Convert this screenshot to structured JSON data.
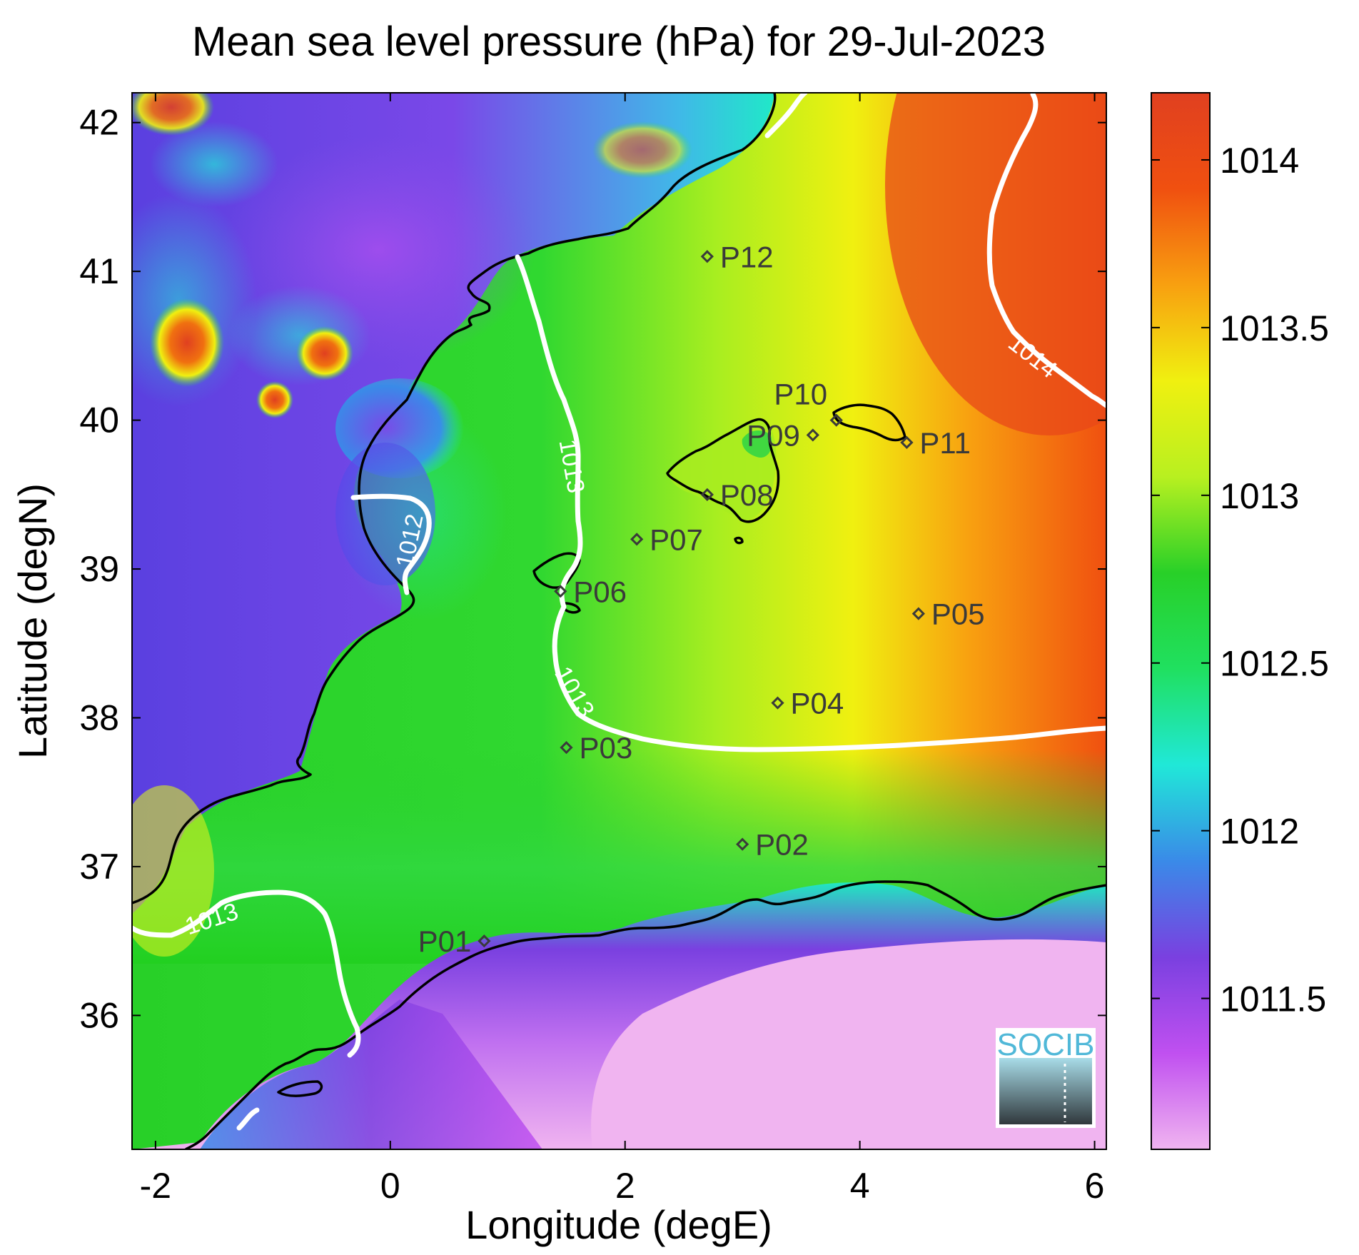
{
  "chart_data": {
    "type": "heatmap",
    "title": "Mean sea level pressure (hPa) for 29-Jul-2023",
    "xlabel": "Longitude (degE)",
    "ylabel": "Latitude (degN)",
    "xlim": [
      -2.2,
      6.1
    ],
    "ylim": [
      35.1,
      42.2
    ],
    "x_ticks": [
      {
        "value": -2,
        "label": "-2"
      },
      {
        "value": 0,
        "label": "0"
      },
      {
        "value": 2,
        "label": "2"
      },
      {
        "value": 4,
        "label": "4"
      },
      {
        "value": 6,
        "label": "6"
      }
    ],
    "y_ticks": [
      {
        "value": 36,
        "label": "36"
      },
      {
        "value": 37,
        "label": "37"
      },
      {
        "value": 38,
        "label": "38"
      },
      {
        "value": 39,
        "label": "39"
      },
      {
        "value": 40,
        "label": "40"
      },
      {
        "value": 41,
        "label": "41"
      },
      {
        "value": 42,
        "label": "42"
      }
    ],
    "colorbar": {
      "min": 1011.05,
      "max": 1014.2,
      "ticks": [
        {
          "value": 1011.5,
          "label": "1011.5"
        },
        {
          "value": 1012,
          "label": "1012"
        },
        {
          "value": 1012.5,
          "label": "1012.5"
        },
        {
          "value": 1013,
          "label": "1013"
        },
        {
          "value": 1013.5,
          "label": "1013.5"
        },
        {
          "value": 1014,
          "label": "1014"
        }
      ],
      "colors": [
        "#f0b4f0",
        "#c050f0",
        "#7a40e0",
        "#3a8ae8",
        "#20e8d8",
        "#20e060",
        "#28d028",
        "#b8f020",
        "#f0f010",
        "#f8a010",
        "#f05010",
        "#e04020"
      ]
    },
    "contour_labels": [
      {
        "text": "1012"
      },
      {
        "text": "1013"
      },
      {
        "text": "1013"
      },
      {
        "text": "1013"
      },
      {
        "text": "1014"
      }
    ],
    "points": [
      {
        "label": "P01",
        "lon": 0.8,
        "lat": 36.5
      },
      {
        "label": "P02",
        "lon": 3.0,
        "lat": 37.15
      },
      {
        "label": "P03",
        "lon": 1.5,
        "lat": 37.8
      },
      {
        "label": "P04",
        "lon": 3.3,
        "lat": 38.1
      },
      {
        "label": "P05",
        "lon": 4.5,
        "lat": 38.7
      },
      {
        "label": "P06",
        "lon": 1.45,
        "lat": 38.85
      },
      {
        "label": "P07",
        "lon": 2.1,
        "lat": 39.2
      },
      {
        "label": "P08",
        "lon": 2.7,
        "lat": 39.5
      },
      {
        "label": "P09",
        "lon": 3.6,
        "lat": 39.9
      },
      {
        "label": "P10",
        "lon": 3.8,
        "lat": 40.0
      },
      {
        "label": "P11",
        "lon": 4.4,
        "lat": 39.85
      },
      {
        "label": "P12",
        "lon": 2.7,
        "lat": 41.1
      }
    ],
    "grid": false,
    "legend": "colorbar right"
  },
  "logo": {
    "text": "SOCIB",
    "colors": {
      "text": "#50b8d8",
      "sea_top": "#a8dce8",
      "sea_bottom": "#30383c"
    }
  }
}
